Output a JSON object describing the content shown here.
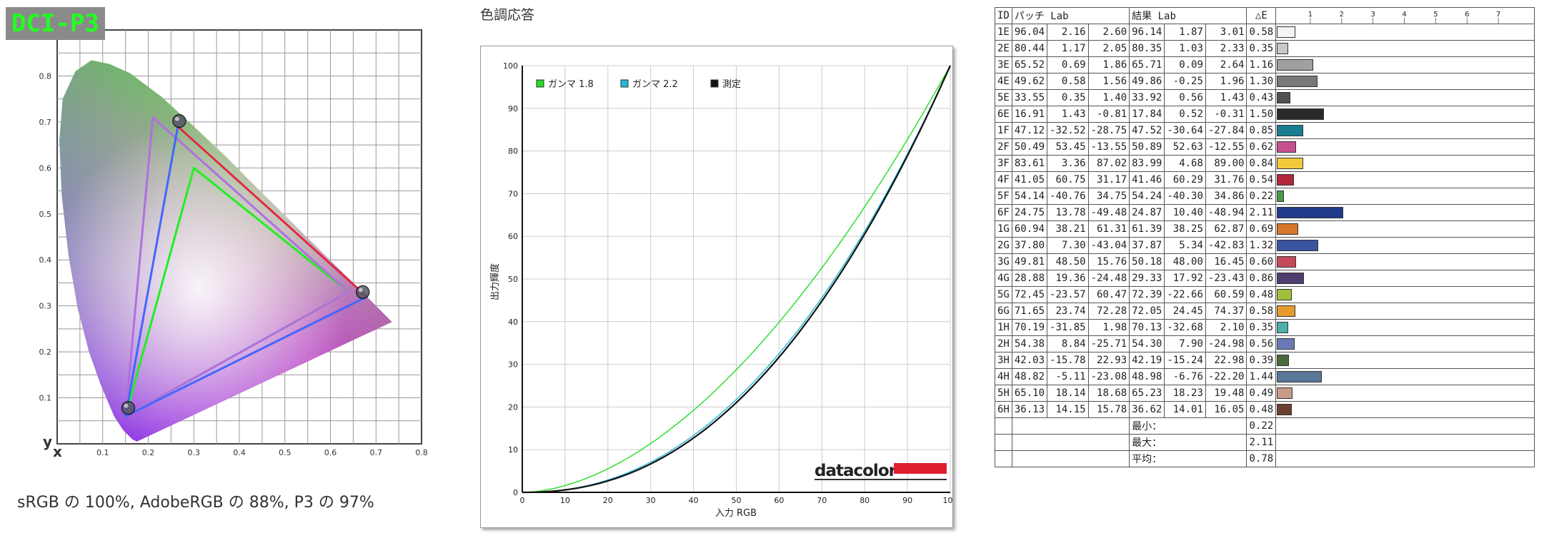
{
  "cie": {
    "badge": "DCI-P3",
    "caption": "sRGB の 100%, AdobeRGB の 88%, P3 の 97%",
    "axis_x": "x",
    "axis_y": "y",
    "x_ticks": [
      "0.1",
      "0.2",
      "0.3",
      "0.4",
      "0.5",
      "0.6",
      "0.7",
      "0.8"
    ],
    "y_ticks": [
      "0.1",
      "0.2",
      "0.3",
      "0.4",
      "0.5",
      "0.6",
      "0.7",
      "0.8"
    ]
  },
  "chart_data": [
    {
      "type": "scatter",
      "title": "DCI-P3",
      "xlabel": "x",
      "ylabel": "y",
      "xlim": [
        0,
        0.8
      ],
      "ylim": [
        0,
        0.9
      ],
      "grid": true,
      "triangles": [
        {
          "color": "#22ee22",
          "points": [
            [
              0.64,
              0.33
            ],
            [
              0.3,
              0.6
            ],
            [
              0.15,
              0.06
            ]
          ]
        },
        {
          "color": "#b070e0",
          "points": [
            [
              0.64,
              0.33
            ],
            [
              0.21,
              0.71
            ],
            [
              0.15,
              0.06
            ]
          ]
        },
        {
          "color": "#4466ff",
          "points": [
            [
              0.68,
              0.32
            ],
            [
              0.265,
              0.69
            ],
            [
              0.15,
              0.06
            ]
          ]
        },
        {
          "color": "#ff2020",
          "points": [
            [
              0.68,
              0.32
            ],
            [
              0.265,
              0.69
            ]
          ]
        }
      ],
      "primaries": [
        [
          0.268,
          0.702
        ],
        [
          0.671,
          0.33
        ],
        [
          0.156,
          0.078
        ]
      ]
    },
    {
      "type": "line",
      "title": "色調応答",
      "xlabel": "入力 RGB",
      "ylabel": "出力輝度",
      "xlim": [
        0,
        100
      ],
      "ylim": [
        0,
        100
      ],
      "x_ticks": [
        0,
        10,
        20,
        30,
        40,
        50,
        60,
        70,
        80,
        90,
        100
      ],
      "y_ticks": [
        0,
        10,
        20,
        30,
        40,
        50,
        60,
        70,
        80,
        90,
        100
      ],
      "grid": true,
      "legend": "top-left",
      "series": [
        {
          "name": "ガンマ 1.8",
          "color": "#22dd22",
          "gamma": 1.8
        },
        {
          "name": "ガンマ 2.2",
          "color": "#22b8d8",
          "gamma": 2.2
        },
        {
          "name": "測定",
          "color": "#111111",
          "gamma": 2.25
        }
      ],
      "logo": "datacolor"
    },
    {
      "type": "table",
      "headers": {
        "id": "ID",
        "patch": "パッチ Lab",
        "result": "結果 Lab",
        "de": "△E"
      },
      "scale": [
        "1",
        "2",
        "3",
        "4",
        "5",
        "6",
        "7"
      ],
      "rows": [
        {
          "id": "1E",
          "p": [
            "96.04",
            "2.16",
            "2.60"
          ],
          "r": [
            "96.14",
            "1.87",
            "3.01"
          ],
          "de": "0.58",
          "dev": 0.58,
          "color": "#f4f4f4"
        },
        {
          "id": "2E",
          "p": [
            "80.44",
            "1.17",
            "2.05"
          ],
          "r": [
            "80.35",
            "1.03",
            "2.33"
          ],
          "de": "0.35",
          "dev": 0.35,
          "color": "#c8c8c8"
        },
        {
          "id": "3E",
          "p": [
            "65.52",
            "0.69",
            "1.86"
          ],
          "r": [
            "65.71",
            "0.09",
            "2.64"
          ],
          "de": "1.16",
          "dev": 1.16,
          "color": "#a0a0a0"
        },
        {
          "id": "4E",
          "p": [
            "49.62",
            "0.58",
            "1.56"
          ],
          "r": [
            "49.86",
            "-0.25",
            "1.96"
          ],
          "de": "1.30",
          "dev": 1.3,
          "color": "#787878"
        },
        {
          "id": "5E",
          "p": [
            "33.55",
            "0.35",
            "1.40"
          ],
          "r": [
            "33.92",
            "0.56",
            "1.43"
          ],
          "de": "0.43",
          "dev": 0.43,
          "color": "#505050"
        },
        {
          "id": "6E",
          "p": [
            "16.91",
            "1.43",
            "-0.81"
          ],
          "r": [
            "17.84",
            "0.52",
            "-0.31"
          ],
          "de": "1.50",
          "dev": 1.5,
          "color": "#2a2a2a"
        },
        {
          "id": "1F",
          "p": [
            "47.12",
            "-32.52",
            "-28.75"
          ],
          "r": [
            "47.52",
            "-30.64",
            "-27.84"
          ],
          "de": "0.85",
          "dev": 0.85,
          "color": "#1a7d90"
        },
        {
          "id": "2F",
          "p": [
            "50.49",
            "53.45",
            "-13.55"
          ],
          "r": [
            "50.89",
            "52.63",
            "-12.55"
          ],
          "de": "0.62",
          "dev": 0.62,
          "color": "#c6508f"
        },
        {
          "id": "3F",
          "p": [
            "83.61",
            "3.36",
            "87.02"
          ],
          "r": [
            "83.99",
            "4.68",
            "89.00"
          ],
          "de": "0.84",
          "dev": 0.84,
          "color": "#f2c93a"
        },
        {
          "id": "4F",
          "p": [
            "41.05",
            "60.75",
            "31.17"
          ],
          "r": [
            "41.46",
            "60.29",
            "31.76"
          ],
          "de": "0.54",
          "dev": 0.54,
          "color": "#b0283a"
        },
        {
          "id": "5F",
          "p": [
            "54.14",
            "-40.76",
            "34.75"
          ],
          "r": [
            "54.24",
            "-40.30",
            "34.86"
          ],
          "de": "0.22",
          "dev": 0.22,
          "color": "#4a9a4a"
        },
        {
          "id": "6F",
          "p": [
            "24.75",
            "13.78",
            "-49.48"
          ],
          "r": [
            "24.87",
            "10.40",
            "-48.94"
          ],
          "de": "2.11",
          "dev": 2.11,
          "color": "#1e3a8a"
        },
        {
          "id": "1G",
          "p": [
            "60.94",
            "38.21",
            "61.31"
          ],
          "r": [
            "61.39",
            "38.25",
            "62.87"
          ],
          "de": "0.69",
          "dev": 0.69,
          "color": "#d6772a"
        },
        {
          "id": "2G",
          "p": [
            "37.80",
            "7.30",
            "-43.04"
          ],
          "r": [
            "37.87",
            "5.34",
            "-42.83"
          ],
          "de": "1.32",
          "dev": 1.32,
          "color": "#3a55a0"
        },
        {
          "id": "3G",
          "p": [
            "49.81",
            "48.50",
            "15.76"
          ],
          "r": [
            "50.18",
            "48.00",
            "16.45"
          ],
          "de": "0.60",
          "dev": 0.6,
          "color": "#c24a5a"
        },
        {
          "id": "4G",
          "p": [
            "28.88",
            "19.36",
            "-24.48"
          ],
          "r": [
            "29.33",
            "17.92",
            "-23.43"
          ],
          "de": "0.86",
          "dev": 0.86,
          "color": "#4e3e70"
        },
        {
          "id": "5G",
          "p": [
            "72.45",
            "-23.57",
            "60.47"
          ],
          "r": [
            "72.39",
            "-22.66",
            "60.59"
          ],
          "de": "0.48",
          "dev": 0.48,
          "color": "#9ec03a"
        },
        {
          "id": "6G",
          "p": [
            "71.65",
            "23.74",
            "72.28"
          ],
          "r": [
            "72.05",
            "24.45",
            "74.37"
          ],
          "de": "0.58",
          "dev": 0.58,
          "color": "#e89a2c"
        },
        {
          "id": "1H",
          "p": [
            "70.19",
            "-31.85",
            "1.98"
          ],
          "r": [
            "70.13",
            "-32.68",
            "2.10"
          ],
          "de": "0.35",
          "dev": 0.35,
          "color": "#4ab0a8"
        },
        {
          "id": "2H",
          "p": [
            "54.38",
            "8.84",
            "-25.71"
          ],
          "r": [
            "54.30",
            "7.90",
            "-24.98"
          ],
          "de": "0.56",
          "dev": 0.56,
          "color": "#6a7ab8"
        },
        {
          "id": "3H",
          "p": [
            "42.03",
            "-15.78",
            "22.93"
          ],
          "r": [
            "42.19",
            "-15.24",
            "22.98"
          ],
          "de": "0.39",
          "dev": 0.39,
          "color": "#4a6a3a"
        },
        {
          "id": "4H",
          "p": [
            "48.82",
            "-5.11",
            "-23.08"
          ],
          "r": [
            "48.98",
            "-6.76",
            "-22.20"
          ],
          "de": "1.44",
          "dev": 1.44,
          "color": "#5a7898"
        },
        {
          "id": "5H",
          "p": [
            "65.10",
            "18.14",
            "18.68"
          ],
          "r": [
            "65.23",
            "18.23",
            "19.48"
          ],
          "de": "0.49",
          "dev": 0.49,
          "color": "#c89a88"
        },
        {
          "id": "6H",
          "p": [
            "36.13",
            "14.15",
            "15.78"
          ],
          "r": [
            "36.62",
            "14.01",
            "16.05"
          ],
          "de": "0.48",
          "dev": 0.48,
          "color": "#6a4032"
        }
      ],
      "summary": [
        {
          "label": "最小：",
          "value": "0.22"
        },
        {
          "label": "最大：",
          "value": "2.11"
        },
        {
          "label": "平均：",
          "value": "0.78"
        }
      ]
    }
  ]
}
